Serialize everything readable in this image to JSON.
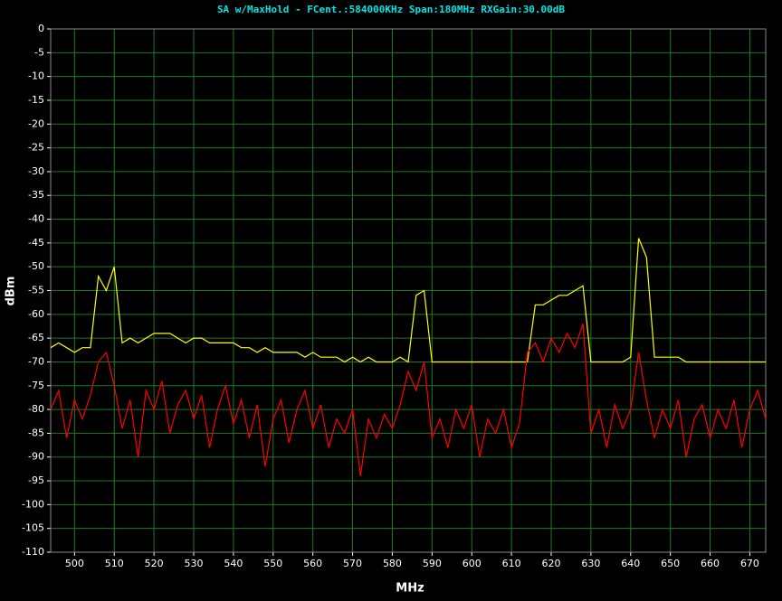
{
  "chart_data": {
    "type": "line",
    "title": "SA w/MaxHold - FCent.:584000KHz Span:180MHz RXGain:30.00dB",
    "x_label": "MHz",
    "y_label": "dBm",
    "xlim": [
      494,
      674
    ],
    "ylim": [
      -110,
      0
    ],
    "xticks": [
      500,
      510,
      520,
      530,
      540,
      550,
      560,
      570,
      580,
      590,
      600,
      610,
      620,
      630,
      640,
      650,
      660,
      670
    ],
    "yticks": [
      0,
      -5,
      -10,
      -15,
      -20,
      -25,
      -30,
      -35,
      -40,
      -45,
      -50,
      -55,
      -60,
      -65,
      -70,
      -75,
      -80,
      -85,
      -90,
      -95,
      -100,
      -105,
      -110
    ],
    "grid": true,
    "grid_color": "#1f7a1f",
    "background": "#000000",
    "x": [
      494,
      496,
      498,
      500,
      502,
      504,
      506,
      508,
      510,
      512,
      514,
      516,
      518,
      520,
      522,
      524,
      526,
      528,
      530,
      532,
      534,
      536,
      538,
      540,
      542,
      544,
      546,
      548,
      550,
      552,
      554,
      556,
      558,
      560,
      562,
      564,
      566,
      568,
      570,
      572,
      574,
      576,
      578,
      580,
      582,
      584,
      586,
      588,
      590,
      592,
      594,
      596,
      598,
      600,
      602,
      604,
      606,
      608,
      610,
      612,
      614,
      616,
      618,
      620,
      622,
      624,
      626,
      628,
      630,
      632,
      634,
      636,
      638,
      640,
      642,
      644,
      646,
      648,
      650,
      652,
      654,
      656,
      658,
      660,
      662,
      664,
      666,
      668,
      670,
      672,
      674
    ],
    "series": [
      {
        "color": "#ffff00",
        "values": [
          -67,
          -66,
          -67,
          -68,
          -67,
          -67,
          -52,
          -55,
          -50,
          -66,
          -65,
          -66,
          -65,
          -64,
          -64,
          -64,
          -65,
          -66,
          -65,
          -65,
          -66,
          -66,
          -66,
          -66,
          -67,
          -67,
          -68,
          -67,
          -68,
          -68,
          -68,
          -68,
          -69,
          -68,
          -69,
          -69,
          -69,
          -70,
          -69,
          -70,
          -69,
          -70,
          -70,
          -70,
          -69,
          -70,
          -56,
          -55,
          -70,
          -70,
          -70,
          -70,
          -70,
          -70,
          -70,
          -70,
          -70,
          -70,
          -70,
          -70,
          -70,
          -58,
          -58,
          -57,
          -56,
          -56,
          -55,
          -54,
          -70,
          -70,
          -70,
          -70,
          -70,
          -69,
          -44,
          -48,
          -69,
          -69,
          -69,
          -69,
          -70,
          -70,
          -70,
          -70,
          -70,
          -70,
          -70,
          -70,
          -70,
          -70,
          -70
        ]
      },
      {
        "color": "#ff0000",
        "values": [
          -80,
          -76,
          -86,
          -78,
          -82,
          -77,
          -70,
          -68,
          -75,
          -84,
          -78,
          -90,
          -76,
          -80,
          -74,
          -85,
          -79,
          -76,
          -82,
          -77,
          -88,
          -80,
          -75,
          -83,
          -78,
          -86,
          -79,
          -92,
          -82,
          -78,
          -87,
          -80,
          -76,
          -84,
          -79,
          -88,
          -82,
          -85,
          -80,
          -94,
          -82,
          -86,
          -81,
          -84,
          -79,
          -72,
          -76,
          -70,
          -86,
          -82,
          -88,
          -80,
          -84,
          -79,
          -90,
          -82,
          -85,
          -80,
          -88,
          -83,
          -68,
          -66,
          -70,
          -65,
          -68,
          -64,
          -67,
          -62,
          -85,
          -80,
          -88,
          -79,
          -84,
          -80,
          -68,
          -78,
          -86,
          -80,
          -84,
          -78,
          -90,
          -82,
          -79,
          -86,
          -80,
          -84,
          -78,
          -88,
          -80,
          -76,
          -82
        ]
      }
    ]
  }
}
